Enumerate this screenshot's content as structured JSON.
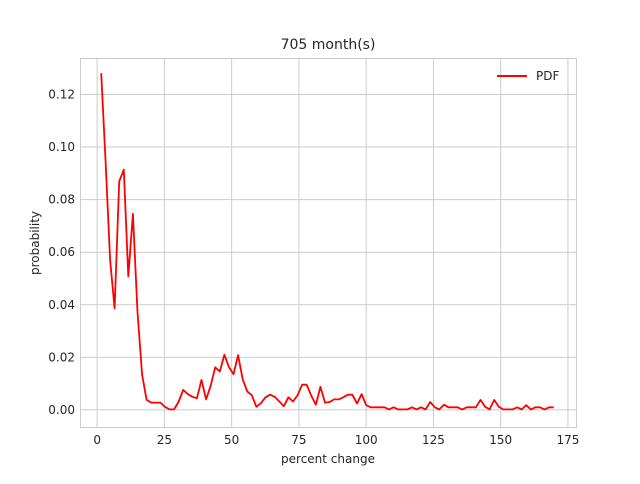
{
  "chart_data": {
    "type": "line",
    "title": "705 month(s)",
    "xlabel": "percent change",
    "ylabel": "probability",
    "xlim": [
      -6,
      178
    ],
    "ylim": [
      -0.0065,
      0.1335
    ],
    "xticks": [
      0,
      25,
      50,
      75,
      100,
      125,
      150,
      175
    ],
    "xtick_labels": [
      "0",
      "25",
      "50",
      "75",
      "100",
      "125",
      "150",
      "175"
    ],
    "yticks": [
      0.0,
      0.02,
      0.04,
      0.06,
      0.08,
      0.1,
      0.12
    ],
    "ytick_labels": [
      "0.00",
      "0.02",
      "0.04",
      "0.06",
      "0.08",
      "0.10",
      "0.12"
    ],
    "grid": true,
    "legend_position": "top-right",
    "series": [
      {
        "name": "PDF",
        "color": "#ff0000",
        "x": [
          1.5,
          3.1,
          4.8,
          6.5,
          8.2,
          9.9,
          11.6,
          13.3,
          15.0,
          16.7,
          18.4,
          20.1,
          21.8,
          23.5,
          25.2,
          26.9,
          28.6,
          30.3,
          32.0,
          33.7,
          35.4,
          37.1,
          38.8,
          40.5,
          42.2,
          43.9,
          45.6,
          47.3,
          49.0,
          50.7,
          52.4,
          54.1,
          55.8,
          57.5,
          59.2,
          60.9,
          62.6,
          64.3,
          66.0,
          67.7,
          69.4,
          71.1,
          72.8,
          74.5,
          76.2,
          77.9,
          79.6,
          81.3,
          83.0,
          84.7,
          86.4,
          88.1,
          89.8,
          91.5,
          93.2,
          94.9,
          96.6,
          98.3,
          100.0,
          101.7,
          103.4,
          105.1,
          106.8,
          108.5,
          110.2,
          111.9,
          113.6,
          115.3,
          117.0,
          118.7,
          120.4,
          122.1,
          123.8,
          125.5,
          127.2,
          128.9,
          130.6,
          132.3,
          134.0,
          135.7,
          137.4,
          139.1,
          140.8,
          142.5,
          144.2,
          145.9,
          147.6,
          149.3,
          151.0,
          152.7,
          154.4,
          156.1,
          157.8,
          159.5,
          161.2,
          162.9,
          164.6,
          166.3,
          168.0,
          169.7
        ],
        "values": [
          0.1281,
          0.0952,
          0.0571,
          0.0386,
          0.0869,
          0.0914,
          0.0508,
          0.0746,
          0.0372,
          0.0134,
          0.0038,
          0.0028,
          0.0028,
          0.0028,
          0.0012,
          0.0002,
          0.0002,
          0.0032,
          0.0076,
          0.006,
          0.005,
          0.0044,
          0.0114,
          0.004,
          0.0092,
          0.0162,
          0.0146,
          0.021,
          0.0162,
          0.0136,
          0.0208,
          0.0116,
          0.007,
          0.0056,
          0.0012,
          0.0026,
          0.0048,
          0.0058,
          0.005,
          0.0032,
          0.0014,
          0.0048,
          0.0032,
          0.0056,
          0.0096,
          0.0096,
          0.0054,
          0.002,
          0.0088,
          0.0028,
          0.003,
          0.004,
          0.004,
          0.0048,
          0.0058,
          0.0058,
          0.0024,
          0.006,
          0.0018,
          0.001,
          0.001,
          0.001,
          0.001,
          0.0002,
          0.001,
          0.0002,
          0.0002,
          0.0002,
          0.001,
          0.0002,
          0.001,
          0.0002,
          0.003,
          0.001,
          0.0002,
          0.002,
          0.001,
          0.001,
          0.001,
          0.0002,
          0.001,
          0.001,
          0.001,
          0.0038,
          0.0012,
          0.0002,
          0.0038,
          0.0012,
          0.0002,
          0.0002,
          0.0002,
          0.001,
          0.0002,
          0.0018,
          0.0002,
          0.001,
          0.001,
          0.0002,
          0.001,
          0.001
        ]
      }
    ]
  }
}
